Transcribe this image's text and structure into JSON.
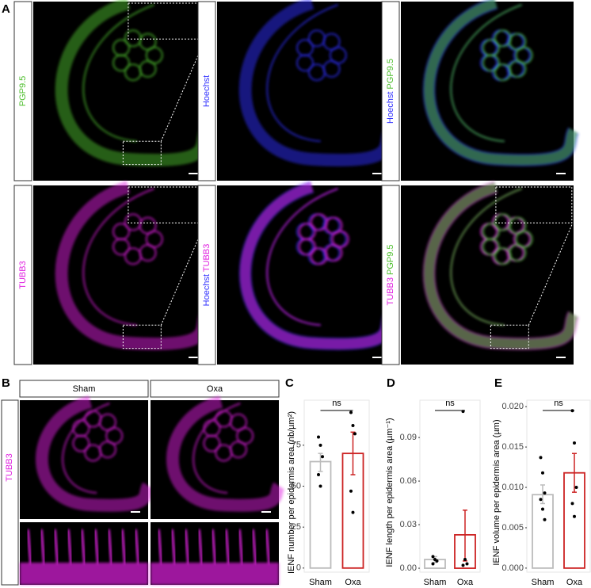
{
  "panel_labels": [
    "A",
    "B",
    "C",
    "D",
    "E"
  ],
  "panel_a": [
    [
      {
        "labels": [
          {
            "text": "PGP9.5",
            "color": "#4fbf2f"
          }
        ]
      },
      {
        "labels": [
          {
            "text": "Hoechst",
            "color": "#3030ff"
          }
        ]
      },
      {
        "labels": [
          {
            "text": "Hoechst",
            "color": "#3030ff"
          },
          {
            "text": "PGP9.5",
            "color": "#4fbf2f"
          }
        ]
      }
    ],
    [
      {
        "labels": [
          {
            "text": "TUBB3",
            "color": "#e020e0"
          }
        ]
      },
      {
        "labels": [
          {
            "text": "Hoechst",
            "color": "#3030ff"
          },
          {
            "text": "TUBB3",
            "color": "#e020e0"
          }
        ]
      },
      {
        "labels": [
          {
            "text": "TUBB3",
            "color": "#e020e0"
          },
          {
            "text": "PGP9.5",
            "color": "#4fbf2f"
          }
        ]
      }
    ]
  ],
  "panel_b": {
    "headers": [
      "Sham",
      "Oxa"
    ],
    "label": {
      "text": "TUBB3",
      "color": "#e020e0"
    }
  },
  "chart_data": [
    {
      "type": "bar",
      "ylabel": "IENF number per epidermis area (nb/µm²)",
      "categories": [
        "Sham",
        "Oxa"
      ],
      "colors": [
        "#bbbbbb",
        "#cc2222"
      ],
      "values": [
        65,
        70
      ],
      "err_low": [
        59,
        57
      ],
      "err_high": [
        70,
        83
      ],
      "points": [
        [
          80,
          75,
          68,
          57,
          50
        ],
        [
          95,
          87,
          82,
          47,
          34
        ]
      ],
      "significance": "ns",
      "ylim": [
        -2.5,
        102.5
      ],
      "yticks": [
        0,
        25,
        50,
        75
      ]
    },
    {
      "type": "bar",
      "ylabel": "IENF length per epidermis area (µm⁻¹)",
      "categories": [
        "Sham",
        "Oxa"
      ],
      "colors": [
        "#bbbbbb",
        "#cc2222"
      ],
      "values": [
        0.006,
        0.023
      ],
      "err_low": [
        0.004,
        0.005
      ],
      "err_high": [
        0.008,
        0.04
      ],
      "points": [
        [
          0.008,
          0.006,
          0.005,
          0.003
        ],
        [
          0.108,
          0.006,
          0.003,
          0.002
        ]
      ],
      "significance": "ns",
      "ylim": [
        -0.0027,
        0.1157
      ],
      "yticks": [
        {
          "value": 0,
          "label": "0.00"
        },
        {
          "value": 0.03,
          "label": "0.03"
        },
        {
          "value": 0.06,
          "label": "0.06"
        },
        {
          "value": 0.09,
          "label": "0.09"
        }
      ]
    },
    {
      "type": "bar",
      "ylabel": "IENF volume per epidermis area (µm)",
      "categories": [
        "Sham",
        "Oxa"
      ],
      "colors": [
        "#bbbbbb",
        "#cc2222"
      ],
      "values": [
        0.0091,
        0.0118
      ],
      "err_low": [
        0.008,
        0.0094
      ],
      "err_high": [
        0.0103,
        0.0142
      ],
      "points": [
        [
          0.0137,
          0.0118,
          0.0093,
          0.0085,
          0.0073,
          0.006
        ],
        [
          0.0195,
          0.0155,
          0.01,
          0.008,
          0.0064
        ]
      ],
      "significance": "ns",
      "ylim": [
        -0.0005,
        0.0208
      ],
      "yticks": [
        {
          "value": 0,
          "label": "0.000"
        },
        {
          "value": 0.005,
          "label": "0.005"
        },
        {
          "value": 0.01,
          "label": "0.010"
        },
        {
          "value": 0.015,
          "label": "0.015"
        },
        {
          "value": 0.02,
          "label": "0.020"
        }
      ]
    }
  ]
}
